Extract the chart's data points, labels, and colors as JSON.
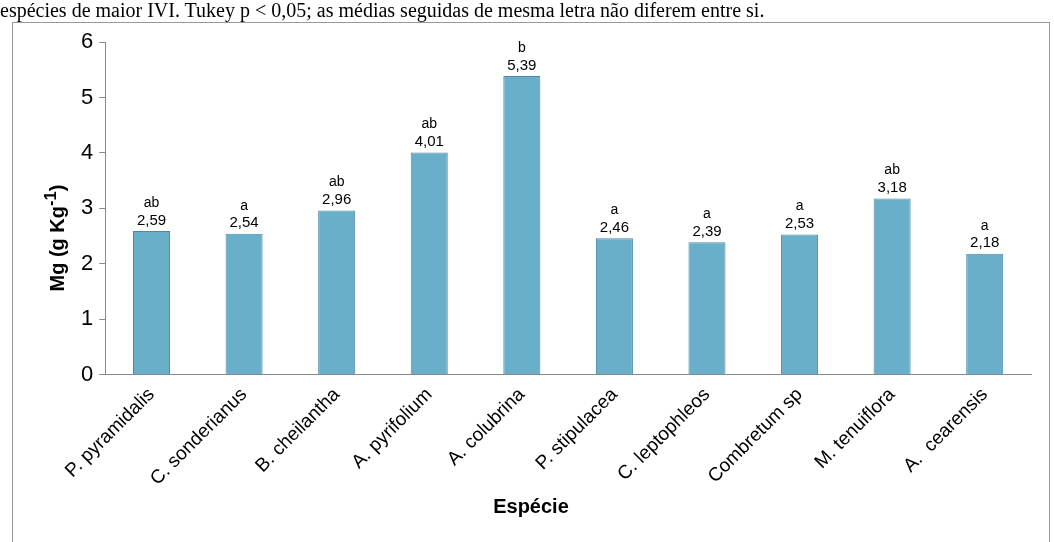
{
  "chart_data": {
    "type": "bar",
    "xlabel": "Espécie",
    "ylabel": "Mg (g Kg$^{-1}$)",
    "categories": [
      "P. pyramidalis",
      "C. sonderianus",
      "B. cheilantha",
      "A. pyrifolium",
      "A. colubrina",
      "P. stipulacea",
      "C. leptophleos",
      "Combretum sp",
      "M. tenuiflora",
      "A.  cearensis"
    ],
    "values": [
      2.59,
      2.54,
      2.96,
      4.01,
      5.39,
      2.46,
      2.39,
      2.53,
      3.18,
      2.18
    ],
    "value_labels": [
      "2,59",
      "2,54",
      "2,96",
      "4,01",
      "5,39",
      "2,46",
      "2,39",
      "2,53",
      "3,18",
      "2,18"
    ],
    "color": "#6aafc9",
    "ylim": [
      0,
      6
    ],
    "yticks": [
      0,
      1,
      2,
      3,
      4,
      5,
      6
    ],
    "grid": false,
    "legend": false,
    "annotations": [
      "espécies de maior IVI. Tukey p < 0,05; as médias seguidas de mesma letra não diferem entre si.",
      {
        "text": "ab",
        "x": "P. pyramidalis",
        "y": 2.59
      },
      {
        "text": "a",
        "x": "C. sonderianus",
        "y": 2.54
      },
      {
        "text": "ab",
        "x": "B. cheilantha",
        "y": 2.96
      },
      {
        "text": "ab",
        "x": "A. pyrifolium",
        "y": 4.01
      },
      {
        "text": "b",
        "x": "A. colubrina",
        "y": 5.39
      },
      {
        "text": "a",
        "x": "P. stipulacea",
        "y": 2.46
      },
      {
        "text": "a",
        "x": "C. leptophleos",
        "y": 2.39
      },
      {
        "text": "a",
        "x": "Combretum sp",
        "y": 2.53
      },
      {
        "text": "ab",
        "x": "M. tenuiflora",
        "y": 3.18
      },
      {
        "text": "a",
        "x": "A.  cearensis",
        "y": 2.18
      }
    ]
  }
}
